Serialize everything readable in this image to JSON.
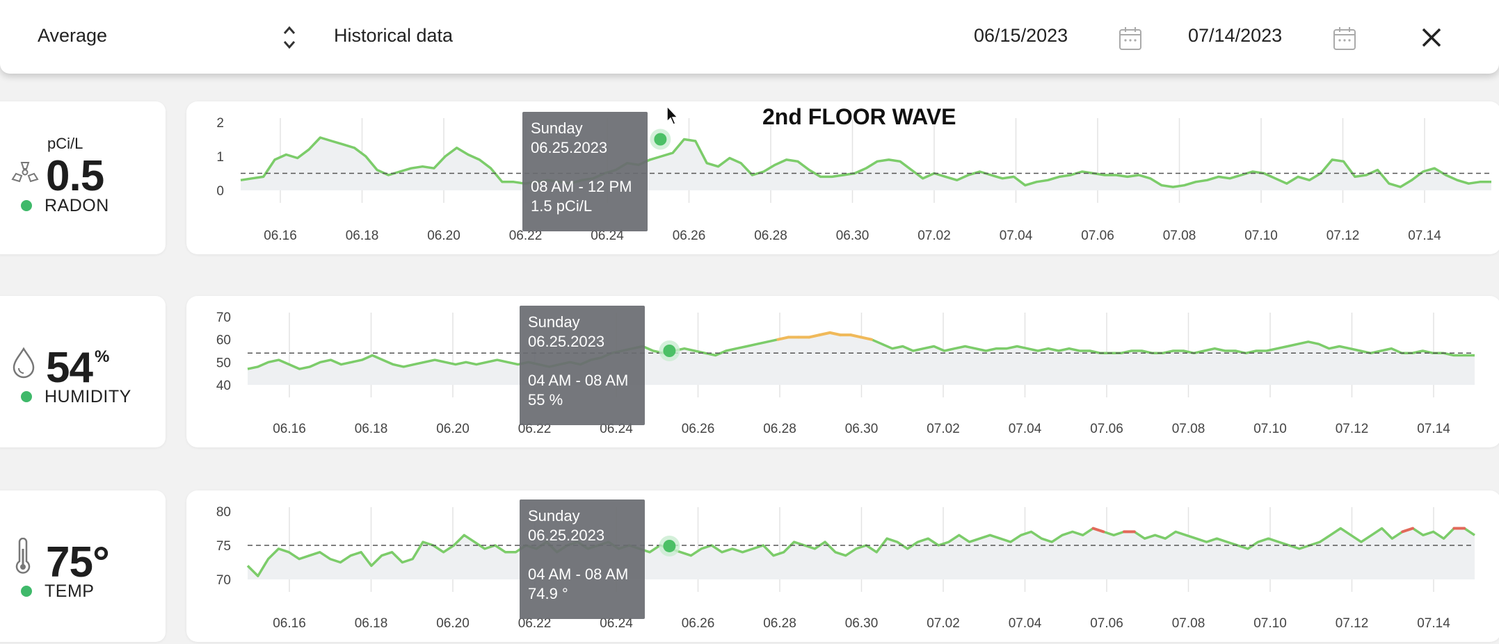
{
  "topbar": {
    "aggregation": "Average",
    "aggregation_icon": "sort-updown-icon",
    "view_label": "Historical data",
    "start_date": "06/15/2023",
    "end_date": "07/14/2023",
    "calendar_icon": "calendar-icon",
    "close_icon": "close-icon"
  },
  "device_title": "2nd FLOOR WAVE",
  "metrics": {
    "radon": {
      "unit": "pCi/L",
      "value": "0.5",
      "label": "RADON",
      "icon": "radiation-icon",
      "status_color": "#3fb96a"
    },
    "humidity": {
      "value": "54",
      "unit": "%",
      "label": "HUMIDITY",
      "icon": "droplet-icon",
      "status_color": "#3fb96a"
    },
    "temp": {
      "value": "75°",
      "label": "TEMP",
      "icon": "thermometer-icon",
      "status_color": "#3fb96a"
    }
  },
  "tooltips": {
    "radon": {
      "day": "Sunday",
      "date": "06.25.2023",
      "range": "08 AM - 12 PM",
      "reading": "1.5 pCi/L"
    },
    "humidity": {
      "day": "Sunday",
      "date": "06.25.2023",
      "range": "04 AM - 08 AM",
      "reading": "55 %"
    },
    "temp": {
      "day": "Sunday",
      "date": "06.25.2023",
      "range": "04 AM - 08 AM",
      "reading": "74.9 °"
    }
  },
  "chart_data": [
    {
      "type": "line",
      "series": [
        {
          "values": [
            0.3,
            0.35,
            0.4,
            0.9,
            1.05,
            0.95,
            1.2,
            1.55,
            1.45,
            1.35,
            1.25,
            1.0,
            0.6,
            0.45,
            0.55,
            0.65,
            0.7,
            0.65,
            1.0,
            1.25,
            1.05,
            0.9,
            0.65,
            0.25,
            0.25,
            0.2,
            0.25,
            0.3,
            0.25,
            0.2,
            0.3,
            0.35,
            0.5,
            0.6,
            0.8,
            0.75,
            0.9,
            1.0,
            1.1,
            1.5,
            1.45,
            0.8,
            0.7,
            0.95,
            0.8,
            0.45,
            0.55,
            0.75,
            0.9,
            0.85,
            0.6,
            0.4,
            0.4,
            0.45,
            0.5,
            0.65,
            0.85,
            0.9,
            0.85,
            0.6,
            0.35,
            0.5,
            0.4,
            0.3,
            0.45,
            0.55,
            0.45,
            0.35,
            0.4,
            0.15,
            0.25,
            0.3,
            0.4,
            0.45,
            0.55,
            0.5,
            0.45,
            0.45,
            0.4,
            0.45,
            0.35,
            0.15,
            0.1,
            0.15,
            0.25,
            0.3,
            0.4,
            0.35,
            0.45,
            0.55,
            0.5,
            0.35,
            0.2,
            0.4,
            0.3,
            0.5,
            0.9,
            0.85,
            0.4,
            0.45,
            0.6,
            0.2,
            0.1,
            0.3,
            0.55,
            0.65,
            0.45,
            0.3,
            0.2,
            0.25,
            0.25
          ]
        }
      ],
      "x_start": "06.15",
      "x_end": "07.14",
      "x_ticks": [
        "06.16",
        "06.18",
        "06.20",
        "06.22",
        "06.24",
        "06.26",
        "06.28",
        "06.30",
        "07.02",
        "07.04",
        "07.06",
        "07.08",
        "07.10",
        "07.12",
        "07.14"
      ],
      "y_ticks": [
        0,
        1,
        2
      ],
      "ylim": [
        0,
        2
      ],
      "average": 0.5,
      "highlight": {
        "date": "06.25.2023",
        "value": 1.5
      },
      "colors": {
        "normal": "#7ccc6a"
      }
    },
    {
      "type": "line",
      "series": [
        {
          "values": [
            47,
            48,
            50,
            51,
            49,
            47,
            48,
            50,
            51,
            49,
            50,
            51,
            53,
            51,
            49,
            48,
            49,
            50,
            51,
            50,
            49,
            50,
            49,
            50,
            51,
            50,
            49,
            50,
            49,
            48,
            49,
            50,
            49,
            51,
            52,
            54,
            55,
            56,
            57,
            55,
            54,
            55,
            56,
            55,
            54,
            53,
            55,
            56,
            57,
            58,
            59,
            60,
            61,
            61,
            61,
            62,
            63,
            62,
            62,
            61,
            60,
            58,
            56,
            57,
            55,
            56,
            57,
            55,
            56,
            57,
            56,
            55,
            56,
            56,
            57,
            56,
            55,
            56,
            55,
            56,
            55,
            55,
            54,
            54,
            54,
            55,
            55,
            54,
            54,
            55,
            55,
            54,
            55,
            56,
            55,
            55,
            54,
            55,
            55,
            56,
            57,
            58,
            59,
            58,
            56,
            57,
            56,
            55,
            54,
            55,
            56,
            54,
            54,
            55,
            54,
            54,
            53,
            53,
            53
          ]
        }
      ],
      "x_start": "06.15",
      "x_end": "07.14",
      "x_ticks": [
        "06.16",
        "06.18",
        "06.20",
        "06.22",
        "06.24",
        "06.26",
        "06.28",
        "06.30",
        "07.02",
        "07.04",
        "07.06",
        "07.08",
        "07.10",
        "07.12",
        "07.14"
      ],
      "y_ticks": [
        40,
        50,
        60,
        70
      ],
      "ylim": [
        40,
        70
      ],
      "average": 54,
      "highlight": {
        "date": "06.25.2023",
        "value": 55
      },
      "warn_threshold": 60,
      "colors": {
        "normal": "#7ccc6a",
        "warning": "#f0b95a"
      }
    },
    {
      "type": "line",
      "series": [
        {
          "values": [
            72.0,
            70.5,
            73.0,
            74.5,
            74.0,
            73.0,
            73.5,
            74.0,
            73.0,
            72.5,
            73.5,
            74.0,
            72.0,
            73.5,
            74.0,
            72.5,
            73.0,
            75.5,
            75.0,
            74.0,
            75.0,
            76.5,
            75.5,
            74.5,
            75.0,
            74.0,
            74.0,
            75.0,
            74.5,
            75.5,
            74.0,
            75.0,
            75.5,
            74.5,
            75.0,
            75.5,
            74.5,
            75.0,
            74.5,
            74.0,
            75.0,
            74.5,
            74.0,
            73.5,
            74.5,
            75.0,
            74.0,
            74.5,
            74.0,
            74.5,
            75.0,
            73.5,
            74.0,
            75.5,
            75.0,
            74.5,
            75.5,
            74.0,
            73.5,
            74.5,
            75.0,
            74.0,
            76.0,
            75.5,
            74.5,
            75.5,
            76.0,
            75.0,
            75.5,
            76.5,
            75.5,
            76.0,
            76.5,
            76.0,
            75.5,
            76.5,
            77.0,
            76.0,
            75.5,
            76.5,
            77.0,
            76.5,
            77.5,
            77.0,
            76.5,
            77.0,
            77.0,
            76.0,
            76.5,
            76.0,
            77.0,
            76.5,
            76.0,
            75.5,
            76.0,
            75.5,
            75.0,
            74.5,
            75.5,
            76.0,
            75.5,
            75.0,
            74.5,
            75.0,
            75.5,
            76.5,
            77.5,
            76.5,
            75.5,
            76.5,
            77.5,
            76.0,
            77.0,
            77.5,
            76.5,
            77.0,
            76.0,
            77.5,
            77.5,
            76.5
          ]
        }
      ],
      "x_start": "06.15",
      "x_end": "07.14",
      "x_ticks": [
        "06.16",
        "06.18",
        "06.20",
        "06.22",
        "06.24",
        "06.26",
        "06.28",
        "06.30",
        "07.02",
        "07.04",
        "07.06",
        "07.08",
        "07.10",
        "07.12",
        "07.14"
      ],
      "y_ticks": [
        70,
        75,
        80
      ],
      "ylim": [
        70,
        80
      ],
      "average": 75,
      "highlight": {
        "date": "06.25.2023",
        "value": 74.9
      },
      "warn_threshold": 77,
      "colors": {
        "normal": "#7ccc6a",
        "warning": "#e2695a"
      }
    }
  ]
}
